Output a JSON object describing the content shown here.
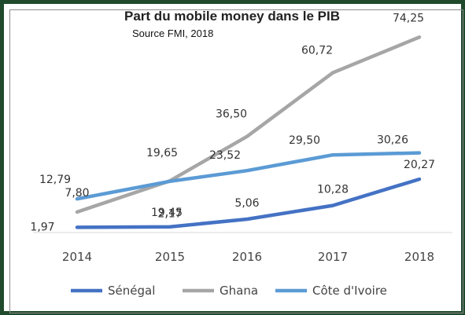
{
  "chart_data": {
    "type": "line",
    "title": "Part du mobile money dans le PIB",
    "subtitle": "Source FMI, 2018",
    "categories": [
      "2014",
      "2015",
      "2016",
      "2017",
      "2018"
    ],
    "ylim": [
      0,
      80
    ],
    "grid": false,
    "legend_position": "bottom",
    "series": [
      {
        "name": "Sénégal",
        "color": "#4472c4",
        "values": [
          1.97,
          2.17,
          5.06,
          10.28,
          20.27
        ],
        "labels": [
          "1,97",
          "2,17",
          "5,06",
          "10,28",
          "20,27"
        ]
      },
      {
        "name": "Ghana",
        "color": "#a6a6a6",
        "values": [
          7.8,
          19.65,
          36.5,
          60.72,
          74.25
        ],
        "labels": [
          "7,80",
          "19,65",
          "36,50",
          "60,72",
          "74,25"
        ]
      },
      {
        "name": "Côte d'Ivoire",
        "color": "#5b9bd5",
        "values": [
          12.79,
          19.45,
          23.52,
          29.5,
          30.26
        ],
        "labels": [
          "12,79",
          "19,45",
          "23,52",
          "29,50",
          "30,26"
        ]
      }
    ]
  }
}
